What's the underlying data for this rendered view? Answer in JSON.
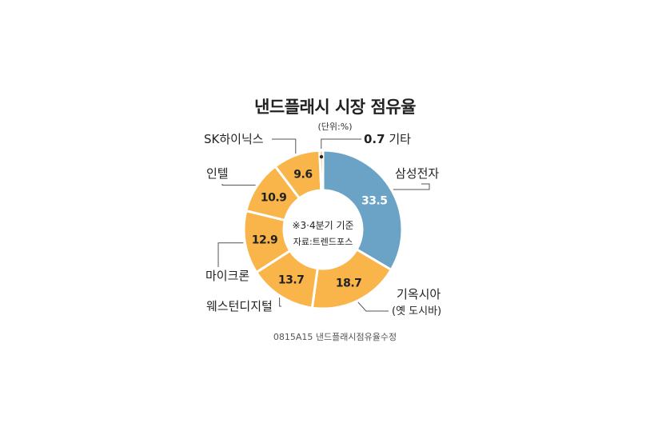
{
  "header": {
    "title": "낸드플래시 시장 점유율",
    "unit": "(단위:%)"
  },
  "center": {
    "line1": "※3·4분기 기준",
    "line2": "자료:트렌드포스"
  },
  "footer": {
    "code": "0815A15 낸드플래시점유율수정"
  },
  "colors": {
    "highlight": "#6aa3c5",
    "others": "#f9b44a",
    "stroke": "#ffffff"
  },
  "chart_data": {
    "type": "pie",
    "donut": true,
    "title": "낸드플래시 시장 점유율",
    "unit": "%",
    "slices": [
      {
        "label": "삼성전자",
        "value": 33.5,
        "value_label": "33.5"
      },
      {
        "label": "기옥시아",
        "sublabel": "(옛 도시바)",
        "value": 18.7,
        "value_label": "18.7"
      },
      {
        "label": "웨스턴디지털",
        "value": 13.7,
        "value_label": "13.7"
      },
      {
        "label": "마이크론",
        "value": 12.9,
        "value_label": "12.9"
      },
      {
        "label": "인텔",
        "value": 10.9,
        "value_label": "10.9"
      },
      {
        "label": "SK하이닉스",
        "value": 9.6,
        "value_label": "9.6"
      },
      {
        "label": "기타",
        "value": 0.7,
        "value_label": "0.7"
      }
    ]
  }
}
